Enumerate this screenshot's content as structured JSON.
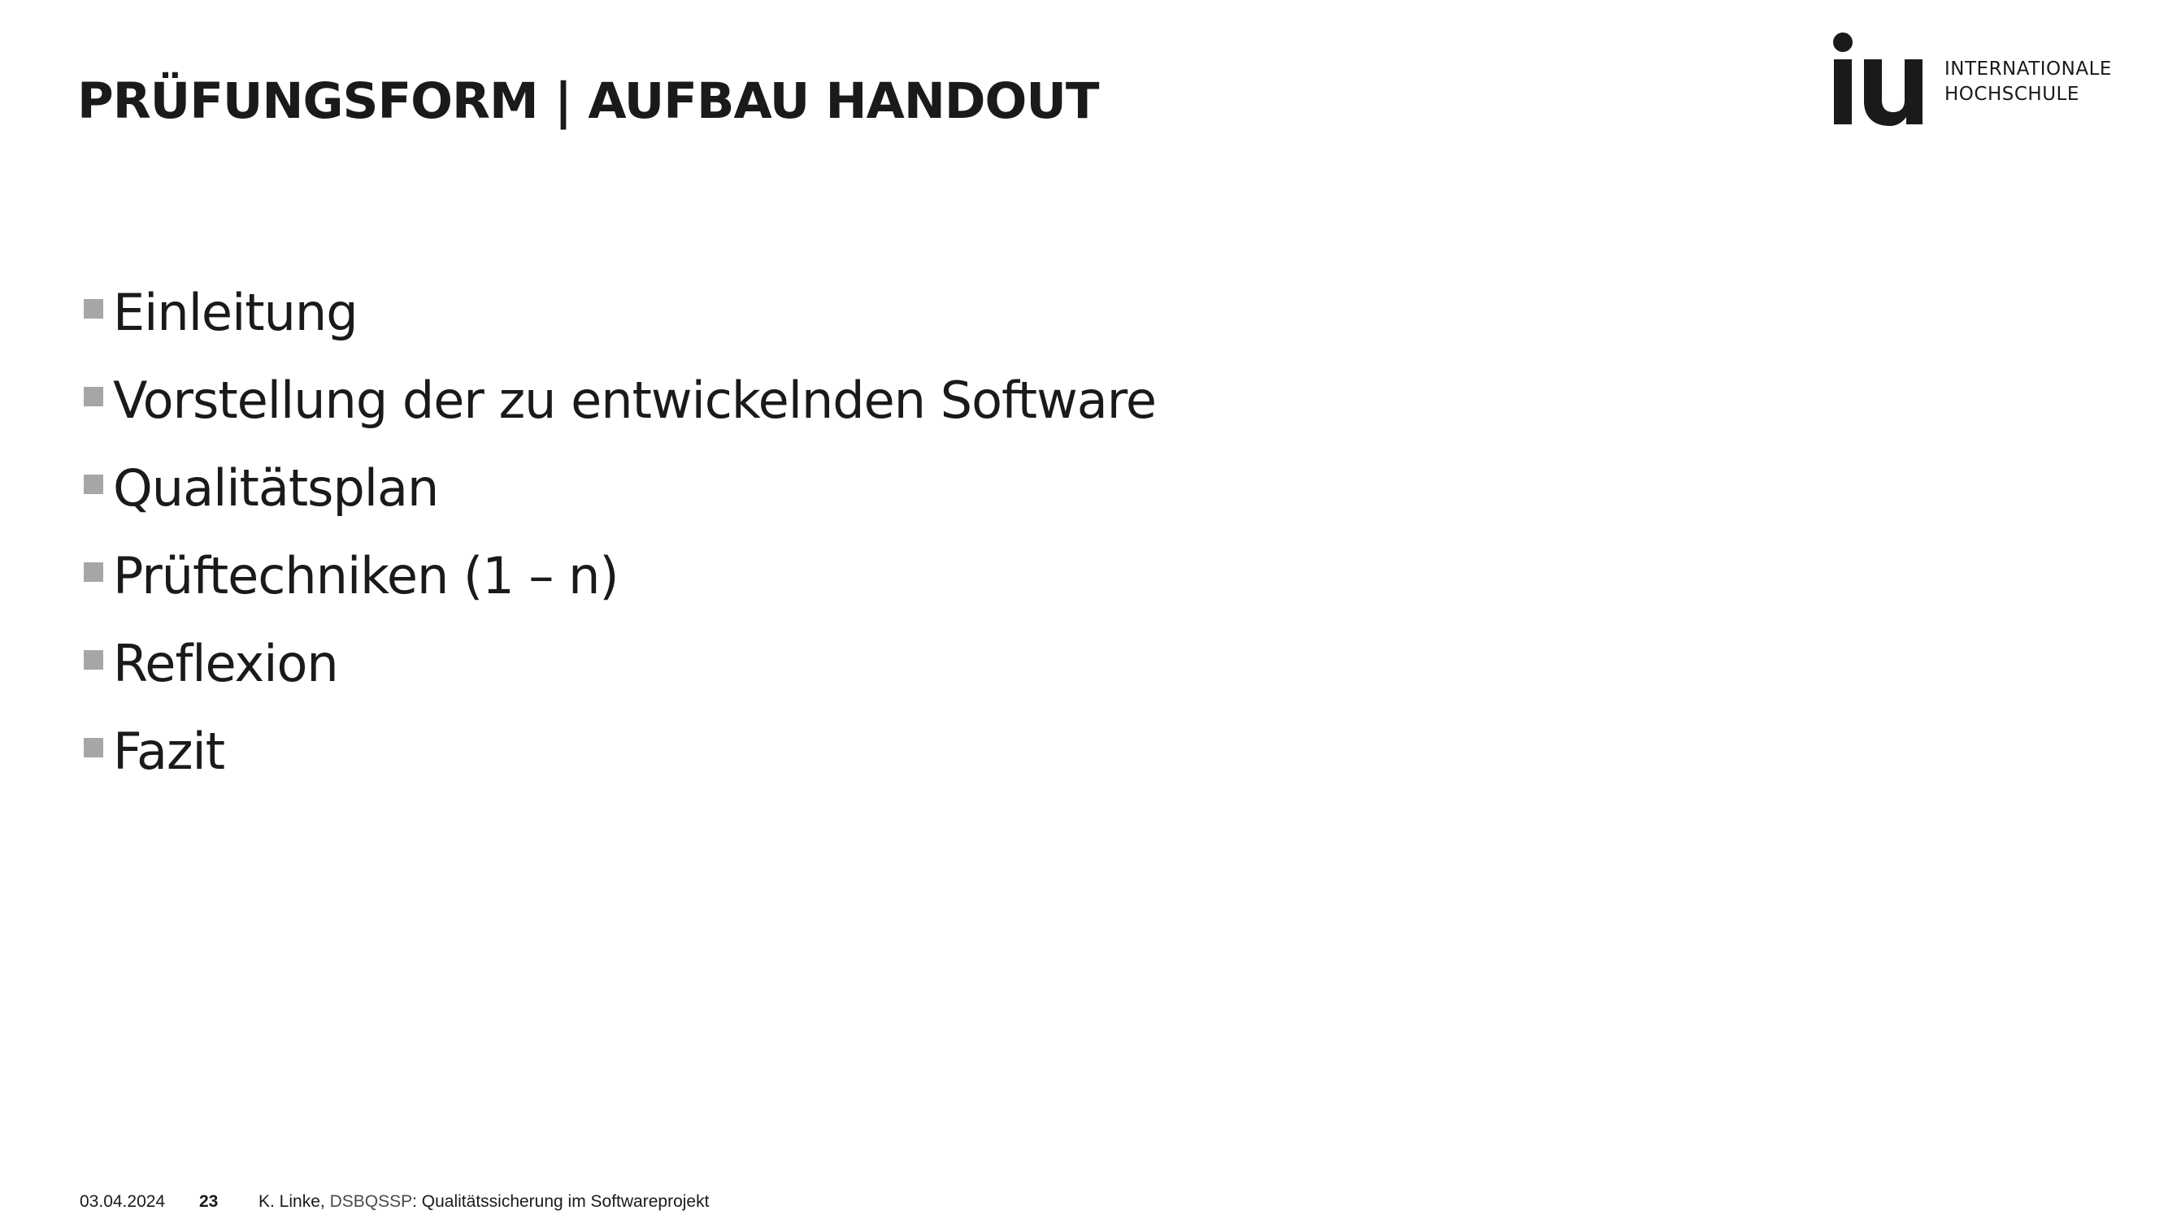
{
  "header": {
    "title": "PRÜFUNGSFORM | AUFBAU HANDOUT"
  },
  "logo": {
    "mark": "iu",
    "line1": "INTERNATIONALE",
    "line2": "HOCHSCHULE"
  },
  "content": {
    "bullets": [
      "Einleitung",
      "Vorstellung der zu entwickelnden Software",
      "Qualitätsplan",
      "Prüftechniken (1 – n)",
      "Reflexion",
      "Fazit"
    ]
  },
  "footer": {
    "date": "03.04.2024",
    "page": "23",
    "author": "K. Linke, ",
    "course_code": "DSBQSSP",
    "course_title": ": Qualitätssicherung im Softwareprojekt"
  },
  "colors": {
    "text": "#1a1a1a",
    "bullet_marker": "#a6a6a6",
    "background": "#ffffff"
  }
}
